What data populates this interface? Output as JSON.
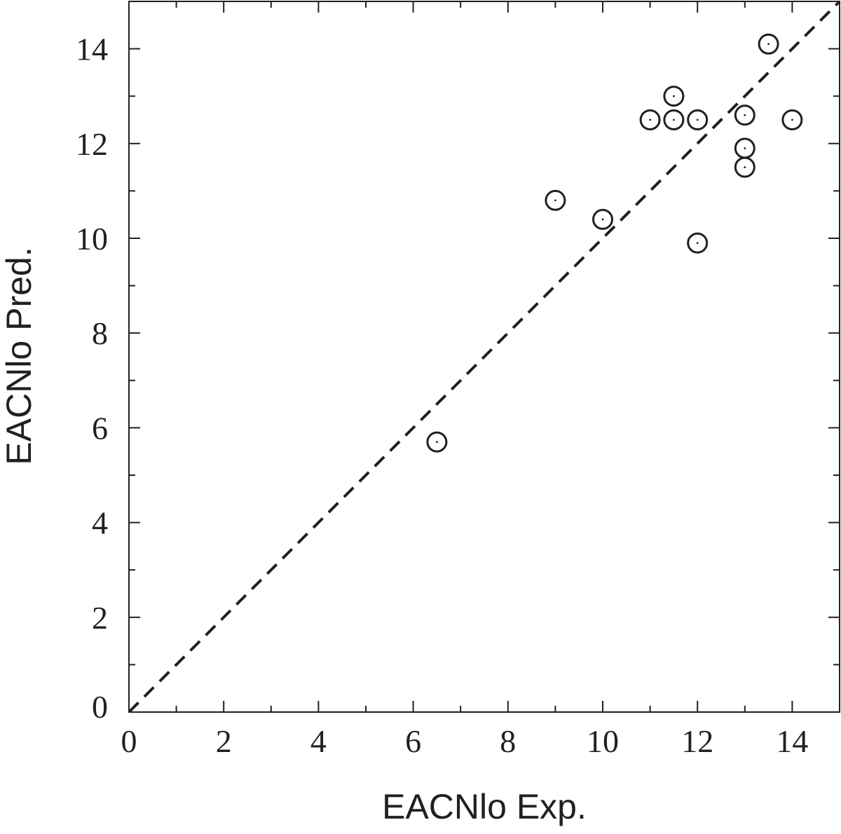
{
  "chart_data": {
    "type": "scatter",
    "title": "",
    "xlabel": "EACNlo Exp.",
    "ylabel": "EACNlo Pred.",
    "xlim": [
      0,
      15
    ],
    "ylim": [
      0,
      15
    ],
    "x_ticks": [
      0,
      2,
      4,
      6,
      8,
      10,
      12,
      14
    ],
    "y_ticks": [
      0,
      2,
      4,
      6,
      8,
      10,
      12,
      14
    ],
    "x_tick_labels": [
      "0",
      "2",
      "4",
      "6",
      "8",
      "10",
      "12",
      "14"
    ],
    "y_tick_labels": [
      "0",
      "2",
      "4",
      "6",
      "8",
      "10",
      "12",
      "14"
    ],
    "minor_tick_step": 1,
    "grid": false,
    "legend": "none",
    "reference_line": {
      "style": "dashed",
      "from": [
        0,
        0
      ],
      "to": [
        15,
        15
      ]
    },
    "marker": "open-circle",
    "points": [
      {
        "x": 6.5,
        "y": 5.7
      },
      {
        "x": 9.0,
        "y": 10.8
      },
      {
        "x": 10.0,
        "y": 10.4
      },
      {
        "x": 11.0,
        "y": 12.5
      },
      {
        "x": 11.5,
        "y": 12.5
      },
      {
        "x": 11.5,
        "y": 13.0
      },
      {
        "x": 12.0,
        "y": 12.5
      },
      {
        "x": 12.0,
        "y": 9.9
      },
      {
        "x": 13.0,
        "y": 12.6
      },
      {
        "x": 13.0,
        "y": 11.9
      },
      {
        "x": 13.0,
        "y": 11.5
      },
      {
        "x": 13.5,
        "y": 14.1
      },
      {
        "x": 14.0,
        "y": 12.5
      }
    ],
    "colors": {
      "ink": "#231f20",
      "background": "#ffffff"
    }
  }
}
